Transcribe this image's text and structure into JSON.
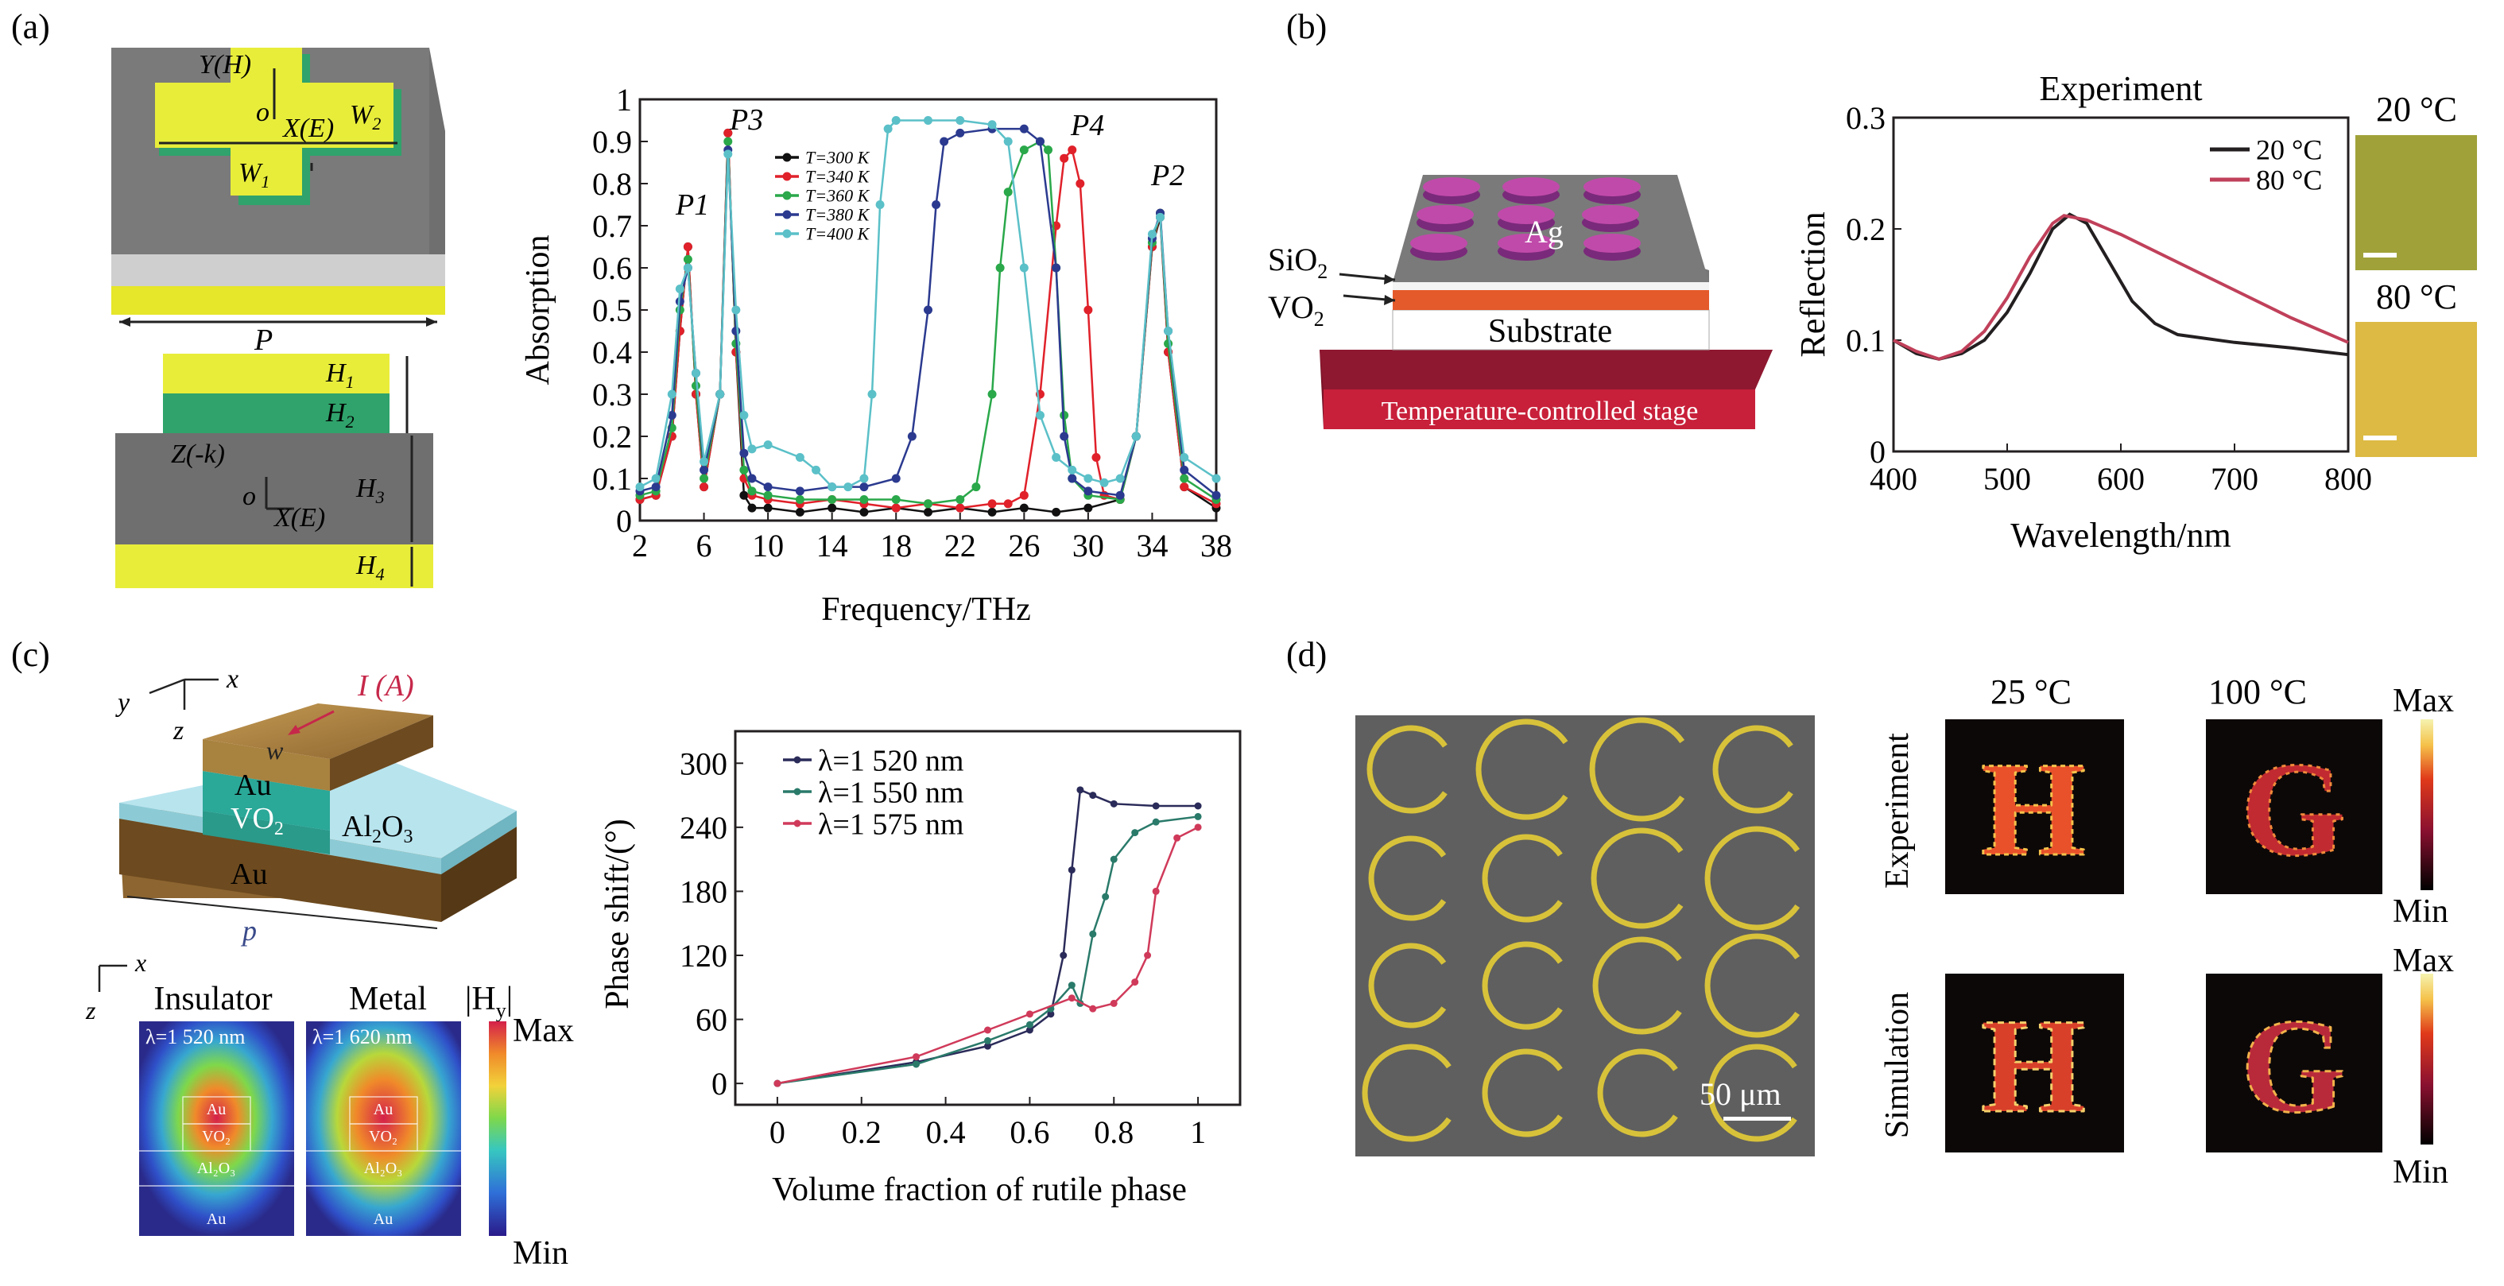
{
  "panels": {
    "a": {
      "label": "(a)",
      "schematic": {
        "axis_y": "Y(H)",
        "axis_o": "o",
        "axis_x": "X(E)",
        "w2": "W",
        "w2_sub": "2",
        "w1": "W",
        "w1_sub": "1",
        "period": "P",
        "h1": "H",
        "h1_sub": "1",
        "h2": "H",
        "h2_sub": "2",
        "h3": "H",
        "h3_sub": "3",
        "h4": "H",
        "h4_sub": "4",
        "axis_z": "Z(-k)",
        "axis_o2": "o",
        "axis_x2": "X(E)"
      },
      "chart": {
        "ylabel": "Absorption",
        "xlabel": "Frequency/THz",
        "peaks": [
          "P1",
          "P3",
          "P4",
          "P2"
        ],
        "legend": [
          "T=300 K",
          "T=340 K",
          "T=360 K",
          "T=380 K",
          "T=400 K"
        ]
      }
    },
    "b": {
      "label": "(b)",
      "schematic": {
        "ag": "Ag",
        "sio2": "SiO",
        "sio2_sub": "2",
        "vo2": "VO",
        "vo2_sub": "2",
        "substrate": "Substrate",
        "stage": "Temperature-controlled stage"
      },
      "chart": {
        "title": "Experiment",
        "ylabel": "Reflection",
        "xlabel": "Wavelength/nm",
        "legend": [
          "20 °C",
          "80 °C"
        ]
      },
      "images": [
        "20 °C",
        "80 °C"
      ]
    },
    "c": {
      "label": "(c)",
      "schematic": {
        "ax_x": "x",
        "ax_y": "y",
        "ax_z": "z",
        "current": "I (A)",
        "w": "w",
        "au": "Au",
        "vo2": "VO",
        "vo2_sub": "2",
        "al2o3": "Al",
        "al2o3_mid": "2",
        "al2o3_end": "O",
        "al2o3_sub": "3",
        "au2": "Au",
        "p": "p"
      },
      "fields": {
        "ax_x": "x",
        "ax_z": "z",
        "insulator": "Insulator",
        "metal": "Metal",
        "hy": "|H",
        "hy_sub": "y",
        "hy_end": "|",
        "lambda1": "λ=1 520 nm",
        "lambda2": "λ=1 620 nm",
        "layers": [
          "Au",
          "VO₂",
          "Al₂O₃",
          "Au"
        ],
        "max": "Max",
        "min": "Min"
      },
      "chart": {
        "ylabel": "Phase shift/(°)",
        "xlabel": "Volume fraction of rutile phase",
        "legend": [
          "λ=1 520 nm",
          "λ=1 550 nm",
          "λ=1 575 nm"
        ]
      }
    },
    "d": {
      "label": "(d)",
      "scale_bar": "50 μm",
      "col_labels": [
        "25 °C",
        "100 °C"
      ],
      "row_labels": [
        "Experiment",
        "Simulation"
      ],
      "letters": [
        "H",
        "G"
      ],
      "max": "Max",
      "min": "Min"
    }
  },
  "chart_data": [
    {
      "type": "line",
      "xlabel": "Frequency/THz",
      "ylabel": "Absorption",
      "xlim": [
        2,
        38
      ],
      "ylim": [
        0,
        1.0
      ],
      "xticks": [
        2,
        6,
        10,
        14,
        18,
        22,
        26,
        30,
        34,
        38
      ],
      "yticks": [
        0,
        0.1,
        0.2,
        0.3,
        0.4,
        0.5,
        0.6,
        0.7,
        0.8,
        0.9,
        1.0
      ],
      "legend_position": "upper-left",
      "series": [
        {
          "name": "T=300 K",
          "color": "#111111",
          "x": [
            2,
            3,
            4,
            4.5,
            5,
            5.5,
            6,
            7,
            7.5,
            8,
            8.5,
            9,
            10,
            12,
            14,
            16,
            18,
            20,
            22,
            24,
            26,
            28,
            30,
            32,
            33,
            34,
            34.5,
            35,
            36,
            38
          ],
          "y": [
            0.05,
            0.06,
            0.2,
            0.45,
            0.65,
            0.3,
            0.08,
            0.3,
            0.92,
            0.4,
            0.06,
            0.03,
            0.03,
            0.02,
            0.03,
            0.02,
            0.03,
            0.02,
            0.03,
            0.02,
            0.03,
            0.02,
            0.03,
            0.05,
            0.2,
            0.65,
            0.72,
            0.4,
            0.08,
            0.03
          ]
        },
        {
          "name": "T=340 K",
          "color": "#e0212a",
          "x": [
            2,
            3,
            4,
            4.5,
            5,
            5.5,
            6,
            7,
            7.5,
            8,
            8.5,
            9,
            10,
            12,
            14,
            16,
            18,
            20,
            22,
            24,
            25,
            26,
            27,
            28,
            28.5,
            29,
            29.5,
            30,
            30.5,
            31,
            32,
            33,
            34,
            34.5,
            35,
            36,
            38
          ],
          "y": [
            0.05,
            0.06,
            0.2,
            0.45,
            0.65,
            0.3,
            0.08,
            0.3,
            0.92,
            0.4,
            0.1,
            0.06,
            0.05,
            0.04,
            0.05,
            0.04,
            0.03,
            0.04,
            0.03,
            0.04,
            0.04,
            0.06,
            0.3,
            0.7,
            0.86,
            0.88,
            0.8,
            0.5,
            0.15,
            0.06,
            0.05,
            0.2,
            0.65,
            0.73,
            0.4,
            0.08,
            0.04
          ]
        },
        {
          "name": "T=360 K",
          "color": "#2aa84a",
          "x": [
            2,
            3,
            4,
            4.5,
            5,
            5.5,
            6,
            7,
            7.5,
            8,
            8.5,
            9,
            10,
            12,
            14,
            16,
            18,
            20,
            22,
            23,
            24,
            24.5,
            25,
            26,
            27,
            27.5,
            28,
            28.5,
            29,
            30,
            32,
            33,
            34,
            34.5,
            35,
            36,
            38
          ],
          "y": [
            0.06,
            0.07,
            0.22,
            0.5,
            0.62,
            0.32,
            0.1,
            0.3,
            0.9,
            0.42,
            0.12,
            0.07,
            0.06,
            0.05,
            0.05,
            0.05,
            0.05,
            0.04,
            0.05,
            0.08,
            0.3,
            0.6,
            0.78,
            0.88,
            0.9,
            0.88,
            0.6,
            0.25,
            0.1,
            0.06,
            0.05,
            0.2,
            0.66,
            0.73,
            0.42,
            0.1,
            0.05
          ]
        },
        {
          "name": "T=380 K",
          "color": "#2b3a8f",
          "x": [
            2,
            3,
            4,
            4.5,
            5,
            5.5,
            6,
            7,
            7.5,
            8,
            8.5,
            9,
            10,
            12,
            14,
            16,
            18,
            19,
            20,
            20.5,
            21,
            22,
            24,
            26,
            27,
            28,
            28.5,
            29,
            30,
            32,
            33,
            34,
            34.5,
            35,
            36,
            38
          ],
          "y": [
            0.07,
            0.08,
            0.25,
            0.52,
            0.6,
            0.35,
            0.12,
            0.3,
            0.88,
            0.45,
            0.16,
            0.1,
            0.08,
            0.07,
            0.08,
            0.08,
            0.1,
            0.2,
            0.5,
            0.75,
            0.9,
            0.92,
            0.93,
            0.93,
            0.9,
            0.6,
            0.2,
            0.1,
            0.07,
            0.06,
            0.2,
            0.67,
            0.73,
            0.45,
            0.12,
            0.06
          ]
        },
        {
          "name": "T=400 K",
          "color": "#5bc0c8",
          "x": [
            2,
            3,
            4,
            4.5,
            5,
            5.5,
            6,
            7,
            7.5,
            8,
            8.5,
            9,
            10,
            12,
            13,
            14,
            15,
            16,
            16.5,
            17,
            17.5,
            18,
            20,
            22,
            24,
            25,
            26,
            27,
            28,
            29,
            30,
            31,
            32,
            33,
            34,
            34.5,
            35,
            36,
            38
          ],
          "y": [
            0.08,
            0.1,
            0.3,
            0.55,
            0.6,
            0.35,
            0.14,
            0.3,
            0.87,
            0.5,
            0.25,
            0.17,
            0.18,
            0.15,
            0.12,
            0.08,
            0.08,
            0.1,
            0.3,
            0.75,
            0.93,
            0.95,
            0.95,
            0.95,
            0.94,
            0.9,
            0.6,
            0.25,
            0.15,
            0.12,
            0.1,
            0.09,
            0.1,
            0.2,
            0.68,
            0.72,
            0.45,
            0.15,
            0.1
          ]
        }
      ]
    },
    {
      "type": "line",
      "title": "Experiment",
      "xlabel": "Wavelength/nm",
      "ylabel": "Reflection",
      "xlim": [
        400,
        800
      ],
      "ylim": [
        0,
        0.3
      ],
      "xticks": [
        400,
        500,
        600,
        700,
        800
      ],
      "yticks": [
        0,
        0.1,
        0.2,
        0.3
      ],
      "legend_position": "top-right",
      "series": [
        {
          "name": "20 °C",
          "color": "#231f20",
          "x": [
            400,
            420,
            440,
            460,
            480,
            500,
            520,
            540,
            555,
            570,
            590,
            610,
            630,
            650,
            700,
            750,
            800
          ],
          "y": [
            0.1,
            0.088,
            0.083,
            0.088,
            0.1,
            0.125,
            0.16,
            0.2,
            0.213,
            0.205,
            0.17,
            0.135,
            0.115,
            0.105,
            0.098,
            0.093,
            0.087
          ]
        },
        {
          "name": "80 °C",
          "color": "#c0405a",
          "x": [
            400,
            420,
            440,
            460,
            480,
            500,
            520,
            540,
            550,
            570,
            600,
            650,
            700,
            750,
            800
          ],
          "y": [
            0.1,
            0.09,
            0.083,
            0.09,
            0.108,
            0.138,
            0.175,
            0.205,
            0.212,
            0.208,
            0.195,
            0.17,
            0.145,
            0.12,
            0.098
          ]
        }
      ]
    },
    {
      "type": "line",
      "xlabel": "Volume fraction of rutile phase",
      "ylabel": "Phase shift/(°)",
      "xlim": [
        -0.1,
        1.1
      ],
      "ylim": [
        -20,
        330
      ],
      "xticks": [
        0,
        0.2,
        0.4,
        0.6,
        0.8,
        1.0
      ],
      "yticks": [
        0,
        60,
        120,
        180,
        240,
        300
      ],
      "legend_position": "top-left",
      "series": [
        {
          "name": "λ=1 520 nm",
          "color": "#2b2b5a",
          "x": [
            0,
            0.33,
            0.5,
            0.6,
            0.65,
            0.68,
            0.7,
            0.72,
            0.75,
            0.8,
            0.9,
            1.0
          ],
          "y": [
            0,
            20,
            35,
            50,
            65,
            120,
            200,
            275,
            270,
            262,
            260,
            260
          ]
        },
        {
          "name": "λ=1 550 nm",
          "color": "#2a7a6a",
          "x": [
            0,
            0.33,
            0.5,
            0.6,
            0.65,
            0.7,
            0.72,
            0.75,
            0.78,
            0.8,
            0.85,
            0.9,
            1.0
          ],
          "y": [
            0,
            18,
            40,
            55,
            70,
            92,
            75,
            140,
            175,
            210,
            235,
            245,
            250
          ]
        },
        {
          "name": "λ=1 575 nm",
          "color": "#d03a5a",
          "x": [
            0,
            0.33,
            0.5,
            0.6,
            0.7,
            0.75,
            0.8,
            0.85,
            0.88,
            0.9,
            0.95,
            1.0
          ],
          "y": [
            0,
            25,
            50,
            65,
            80,
            70,
            75,
            95,
            120,
            180,
            230,
            240
          ]
        }
      ]
    }
  ]
}
